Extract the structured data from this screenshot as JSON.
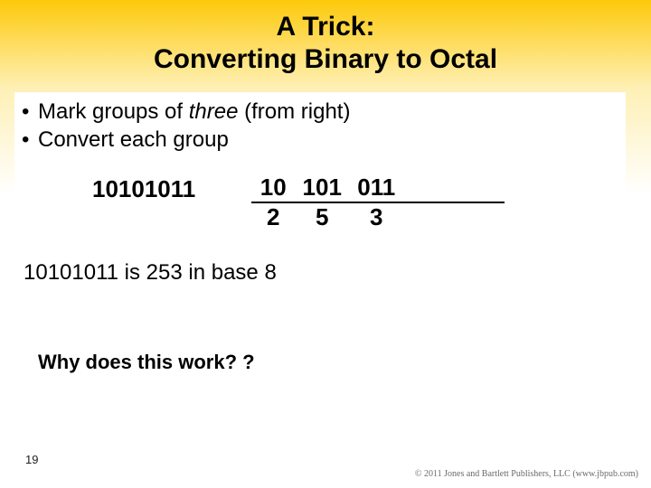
{
  "slide": {
    "background": {
      "gradient_top": "#fdc90a",
      "gradient_mid": "#fef0b5",
      "gradient_bottom": "#ffffff"
    },
    "title": {
      "line1": "A Trick:",
      "line2": "Converting Binary to Octal",
      "fontsize": 30,
      "weight": "bold",
      "color": "#000000"
    },
    "bullets": [
      {
        "pre": "Mark groups of ",
        "emph": "three",
        "post": " (from right)"
      },
      {
        "pre": "Convert each group",
        "emph": "",
        "post": ""
      }
    ],
    "bullet_fontsize": 24,
    "example": {
      "binary": "10101011",
      "groups": [
        "10",
        "101",
        "011"
      ],
      "digits": [
        "2",
        "5",
        "3"
      ],
      "fontsize": 26,
      "weight": "bold",
      "underline_color": "#000000",
      "underline_width": 2
    },
    "result": "10101011 is 253 in base 8",
    "result_fontsize": 24,
    "why": "Why does this work? ?",
    "why_fontsize": 22,
    "page_number": "19",
    "copyright": "© 2011 Jones and Bartlett Publishers, LLC (www.jbpub.com)"
  }
}
